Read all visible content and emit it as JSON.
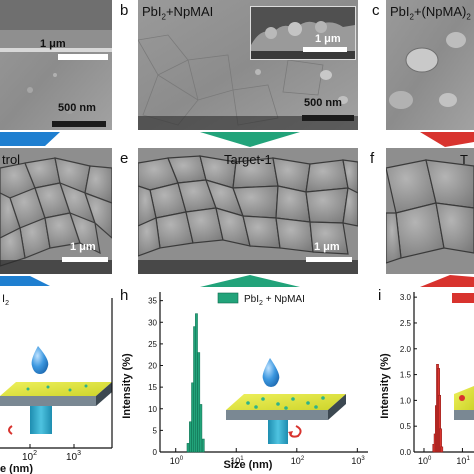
{
  "figure": {
    "colors": {
      "blue": "#1f7fd0",
      "green": "#22a37a",
      "red": "#d8332e",
      "yellow_film": "#e4e83a",
      "substrate_blue": "#2aa6c9",
      "droplet": "#2f8fd8",
      "dot_green": "#2fb389",
      "curl_red": "#d8332e"
    },
    "row1": {
      "a": {
        "inset_scale": "1 μm",
        "scale": "500 nm"
      },
      "b": {
        "letter": "b",
        "title_main": "PbI",
        "title_sub": "2",
        "title_rest": "+NpMAI",
        "inset_scale": "1 μm",
        "scale": "500 nm"
      },
      "c": {
        "letter": "c",
        "title_main": "PbI",
        "title_sub": "2",
        "title_rest": "+(NpMA)",
        "title_sub2": "2"
      }
    },
    "row2": {
      "d": {
        "title": "trol",
        "scale": "1 μm"
      },
      "e": {
        "letter": "e",
        "title": "Target-1",
        "scale": "1 μm"
      },
      "f": {
        "letter": "f",
        "title": "T"
      }
    },
    "row3": {
      "g": {
        "legend_main": "I",
        "legend_sub": "2",
        "x_tick_1": "10",
        "x_tick_1_exp": "2",
        "x_tick_2": "10",
        "x_tick_2_exp": "3",
        "xlabel": "e (nm)"
      },
      "h": {
        "letter": "h",
        "legend_main": "PbI",
        "legend_sub": "2",
        "legend_rest": " + NpMAI",
        "ylabel": "Intensity (%)",
        "xlabel": "Size (nm)",
        "y_ticks": [
          "0",
          "5",
          "10",
          "15",
          "20",
          "25",
          "30",
          "35"
        ],
        "x_ticks": [
          {
            "base": "10",
            "exp": "0"
          },
          {
            "base": "10",
            "exp": "1"
          },
          {
            "base": "10",
            "exp": "2"
          },
          {
            "base": "10",
            "exp": "3"
          }
        ]
      },
      "i": {
        "letter": "i",
        "ylabel": "Intensity (%)",
        "y_ticks": [
          "0.0",
          "0.5",
          "1.0",
          "1.5",
          "2.0",
          "2.5",
          "3.0"
        ],
        "x_ticks": [
          {
            "base": "10",
            "exp": "0"
          },
          {
            "base": "10",
            "exp": "1"
          }
        ]
      }
    }
  },
  "chart_data": [
    {
      "type": "bar",
      "panel": "h",
      "xscale": "log",
      "xlim": [
        0.55,
        1500
      ],
      "ylim": [
        0,
        37
      ],
      "series": [
        {
          "name": "PbI2 + NpMAI",
          "x": [
            1.6,
            1.75,
            1.9,
            2.05,
            2.2,
            2.4,
            2.6,
            2.85
          ],
          "values": [
            2,
            7,
            16,
            29,
            32,
            23,
            11,
            3
          ]
        }
      ]
    },
    {
      "type": "bar",
      "panel": "i",
      "xscale": "log",
      "xlim": [
        0.55,
        20
      ],
      "ylim": [
        0,
        3.1
      ],
      "series": [
        {
          "x": [
            1.8,
            1.95,
            2.1,
            2.25,
            2.4,
            2.55,
            2.7,
            2.9
          ],
          "values": [
            0.15,
            0.35,
            0.9,
            1.7,
            1.62,
            1.1,
            0.45,
            0.1
          ]
        }
      ]
    }
  ]
}
